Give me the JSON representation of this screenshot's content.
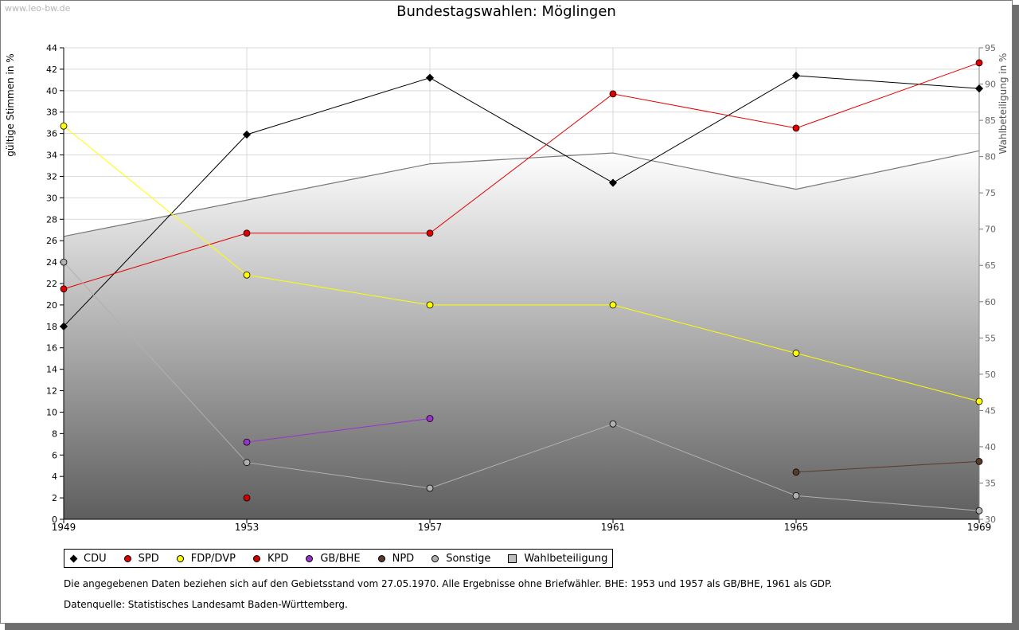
{
  "watermark": "www.leo-bw.de",
  "title": "Bundestagswahlen: Möglingen",
  "note": "Die angegebenen Daten beziehen sich auf den Gebietsstand vom 27.05.1970. Alle Ergebnisse ohne Briefwähler. BHE: 1953 und 1957 als GB/BHE, 1961 als GDP.",
  "source": "Datenquelle: Statistisches Landesamt Baden-Württemberg.",
  "chart_data": {
    "type": "line",
    "ylabel": "gültige Stimmen in %",
    "y2label": "Wahlbeteiligung in %",
    "x": [
      "1949",
      "1953",
      "1957",
      "1961",
      "1965",
      "1969"
    ],
    "ylim": [
      0,
      44
    ],
    "yticks": [
      "0",
      "2",
      "4",
      "6",
      "8",
      "10",
      "12",
      "14",
      "16",
      "18",
      "20",
      "22",
      "24",
      "26",
      "28",
      "30",
      "32",
      "34",
      "36",
      "38",
      "40",
      "42",
      "44"
    ],
    "y2lim": [
      30,
      95
    ],
    "y2ticks": [
      "30",
      "35",
      "40",
      "45",
      "50",
      "55",
      "60",
      "65",
      "70",
      "75",
      "80",
      "85",
      "90",
      "95"
    ],
    "grid": true,
    "legend_position": "bottom",
    "series": [
      {
        "name": "CDU",
        "color": "#000000",
        "marker": "diamond",
        "values": [
          18.0,
          35.9,
          41.2,
          31.4,
          41.4,
          40.2
        ]
      },
      {
        "name": "SPD",
        "color": "#e00000",
        "marker": "circle",
        "values": [
          21.5,
          26.7,
          26.7,
          39.7,
          36.5,
          42.6
        ]
      },
      {
        "name": "FDP/DVP",
        "color": "#ffff00",
        "marker": "circle",
        "values": [
          36.7,
          22.8,
          20.0,
          20.0,
          15.5,
          11.0
        ]
      },
      {
        "name": "KPD",
        "color": "#cc0000",
        "marker": "circle",
        "values": [
          null,
          2.0,
          null,
          null,
          null,
          null
        ]
      },
      {
        "name": "GB/BHE",
        "color": "#9933cc",
        "marker": "circle",
        "values": [
          null,
          7.2,
          9.4,
          null,
          null,
          null
        ]
      },
      {
        "name": "NPD",
        "color": "#5a3a2a",
        "marker": "circle",
        "values": [
          null,
          null,
          null,
          null,
          4.4,
          5.4
        ]
      },
      {
        "name": "Sonstige",
        "color": "#b0b0b0",
        "marker": "circle",
        "values": [
          24.0,
          5.3,
          2.9,
          8.9,
          2.2,
          0.8
        ]
      }
    ],
    "turnout": {
      "name": "Wahlbeteiligung",
      "color": "#777777",
      "axis": "right",
      "values": [
        69.0,
        74.0,
        79.0,
        80.5,
        75.5,
        80.8
      ]
    }
  }
}
